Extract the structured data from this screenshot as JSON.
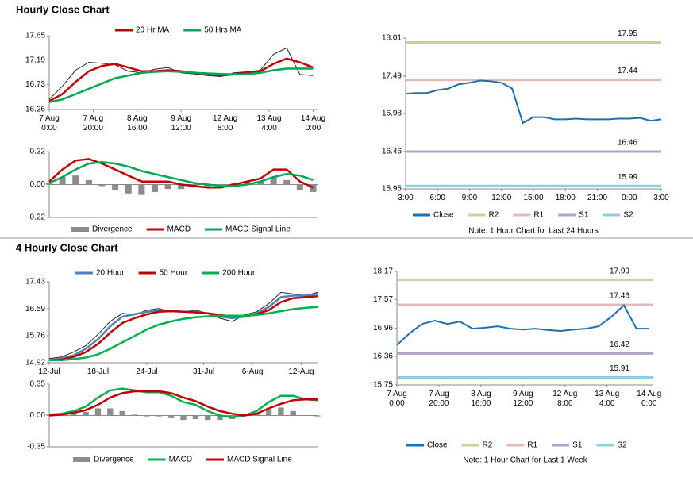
{
  "headers": [
    "Hourly Close Chart",
    "4 Hourly Close Chart"
  ],
  "chart_data": [
    {
      "type": "line",
      "xlim": [
        0,
        122
      ],
      "ylim": [
        16.26,
        17.65
      ],
      "yticks": [
        16.26,
        16.73,
        17.19,
        17.65
      ],
      "legend": "top",
      "xticks": [
        {
          "value": 0,
          "label": "7 Aug\n0:00"
        },
        {
          "value": 20,
          "label": "7 Aug\n20:00"
        },
        {
          "value": 40,
          "label": "8 Aug\n16:00"
        },
        {
          "value": 60,
          "label": "9 Aug\n12:00"
        },
        {
          "value": 80,
          "label": "12 Aug\n8:00"
        },
        {
          "value": 100,
          "label": "13 Aug\n4:00"
        },
        {
          "value": 120,
          "label": "14 Aug\n0:00"
        }
      ],
      "x": [
        0,
        6,
        12,
        18,
        24,
        30,
        36,
        42,
        48,
        54,
        60,
        66,
        72,
        78,
        84,
        90,
        96,
        102,
        108,
        114,
        120
      ],
      "series": [
        {
          "color": "#222222",
          "values": [
            16.45,
            16.7,
            17.0,
            17.15,
            17.13,
            17.1,
            16.98,
            16.95,
            17.02,
            17.05,
            16.95,
            16.93,
            16.9,
            16.88,
            16.95,
            16.97,
            17.0,
            17.3,
            17.42,
            16.92,
            16.9
          ]
        },
        {
          "name": "20 Hr MA",
          "color": "#c00000",
          "values": [
            16.42,
            16.55,
            16.78,
            16.98,
            17.08,
            17.12,
            17.05,
            16.98,
            16.98,
            17.0,
            16.98,
            16.95,
            16.93,
            16.9,
            16.92,
            16.95,
            16.98,
            17.12,
            17.22,
            17.15,
            17.05
          ]
        },
        {
          "name": "50 Hrs MA",
          "color": "#00a651",
          "values": [
            16.4,
            16.45,
            16.55,
            16.65,
            16.75,
            16.85,
            16.9,
            16.95,
            16.97,
            16.98,
            16.97,
            16.95,
            16.94,
            16.93,
            16.92,
            16.93,
            16.95,
            17.0,
            17.03,
            17.03,
            17.03
          ]
        }
      ]
    },
    {
      "type": "macd",
      "xlim": [
        0,
        122
      ],
      "ylim": [
        -0.22,
        0.22
      ],
      "yticks": [
        -0.22,
        {
          "value": 0,
          "label": "0.00"
        },
        0.22
      ],
      "legend": "bottom",
      "x": [
        0,
        6,
        12,
        18,
        24,
        30,
        36,
        42,
        48,
        54,
        60,
        66,
        72,
        78,
        84,
        90,
        96,
        102,
        108,
        114,
        120
      ],
      "series": [
        {
          "name": "Divergence",
          "kind": "bar",
          "color": "#8c8c8c",
          "values": [
            0.01,
            0.05,
            0.06,
            0.03,
            -0.01,
            -0.04,
            -0.06,
            -0.07,
            -0.05,
            -0.03,
            -0.03,
            -0.02,
            -0.02,
            -0.01,
            0.01,
            0.02,
            0.02,
            0.05,
            0.03,
            -0.04,
            -0.05
          ]
        },
        {
          "name": "MACD",
          "color": "#c00000",
          "values": [
            0.02,
            0.1,
            0.16,
            0.17,
            0.14,
            0.1,
            0.06,
            0.02,
            0.02,
            0.02,
            0.0,
            -0.01,
            -0.02,
            -0.02,
            0.0,
            0.02,
            0.04,
            0.1,
            0.1,
            0.02,
            -0.02
          ]
        },
        {
          "name": "MACD Signal Line",
          "color": "#00a651",
          "values": [
            0.01,
            0.05,
            0.1,
            0.14,
            0.15,
            0.14,
            0.12,
            0.09,
            0.07,
            0.05,
            0.03,
            0.01,
            0.0,
            -0.01,
            -0.01,
            0.0,
            0.02,
            0.05,
            0.07,
            0.06,
            0.03
          ]
        }
      ]
    },
    {
      "type": "pivot",
      "xlim": [
        0,
        24
      ],
      "ylim": [
        15.95,
        18.01
      ],
      "yticks": [
        15.95,
        16.46,
        16.98,
        17.49,
        18.01
      ],
      "legend": "bottom",
      "xticks": [
        {
          "value": 0,
          "label": "3:00"
        },
        {
          "value": 3,
          "label": "6:00"
        },
        {
          "value": 6,
          "label": "9:00"
        },
        {
          "value": 9,
          "label": "12:00"
        },
        {
          "value": 12,
          "label": "15:00"
        },
        {
          "value": 15,
          "label": "18:00"
        },
        {
          "value": 18,
          "label": "21:00"
        },
        {
          "value": 21,
          "label": "0:00"
        },
        {
          "value": 24,
          "label": "3:00"
        }
      ],
      "x": [
        0,
        1,
        2,
        3,
        4,
        5,
        6,
        7,
        8,
        9,
        10,
        11,
        12,
        13,
        14,
        15,
        16,
        17,
        18,
        19,
        20,
        21,
        22,
        23,
        24
      ],
      "series": [
        {
          "name": "Close",
          "color": "#1f6fad",
          "values": [
            17.25,
            17.26,
            17.26,
            17.3,
            17.32,
            17.38,
            17.4,
            17.43,
            17.42,
            17.4,
            17.32,
            16.85,
            16.93,
            16.93,
            16.9,
            16.9,
            16.91,
            16.9,
            16.9,
            16.9,
            16.91,
            16.91,
            16.92,
            16.88,
            16.9
          ]
        }
      ],
      "levels": [
        {
          "name": "R2",
          "color": "#c3d69b",
          "value": 17.95
        },
        {
          "name": "R1",
          "color": "#e6b9b8",
          "value": 17.44
        },
        {
          "name": "S1",
          "color": "#b3a2c7",
          "value": 16.46
        },
        {
          "name": "S2",
          "color": "#93cddd",
          "value": 15.99
        }
      ],
      "note": "Note: 1 Hour Chart for Last 24 Hours"
    },
    {
      "type": "line",
      "xlim": [
        0,
        33
      ],
      "ylim": [
        14.92,
        17.43
      ],
      "yticks": [
        14.92,
        15.76,
        16.59,
        17.43
      ],
      "legend": "top",
      "xticks": [
        {
          "value": 0,
          "label": "12-Jul"
        },
        {
          "value": 6,
          "label": "18-Jul"
        },
        {
          "value": 12,
          "label": "24-Jul"
        },
        {
          "value": 19,
          "label": "31-Jul"
        },
        {
          "value": 25,
          "label": "6-Aug"
        },
        {
          "value": 31,
          "label": "12-Aug"
        }
      ],
      "x": [
        0,
        1.5,
        3,
        4.5,
        6,
        7.5,
        9,
        10.5,
        12,
        13.5,
        15,
        16.5,
        18,
        19.5,
        21,
        22.5,
        24,
        25.5,
        27,
        28.5,
        30,
        31.5,
        33
      ],
      "series": [
        {
          "color": "#222222",
          "values": [
            15.05,
            15.1,
            15.25,
            15.45,
            15.8,
            16.2,
            16.45,
            16.4,
            16.55,
            16.6,
            16.5,
            16.5,
            16.55,
            16.45,
            16.3,
            16.2,
            16.4,
            16.5,
            16.75,
            17.1,
            17.05,
            17.0,
            17.1
          ]
        },
        {
          "name": "20 Hour",
          "color": "#4f81bd",
          "values": [
            15.0,
            15.05,
            15.15,
            15.35,
            15.65,
            16.05,
            16.35,
            16.42,
            16.5,
            16.55,
            16.52,
            16.5,
            16.5,
            16.45,
            16.35,
            16.3,
            16.35,
            16.45,
            16.65,
            16.95,
            17.0,
            17.0,
            17.05
          ]
        },
        {
          "name": "50 Hour",
          "color": "#c00000",
          "values": [
            15.0,
            15.02,
            15.1,
            15.25,
            15.5,
            15.85,
            16.15,
            16.3,
            16.42,
            16.5,
            16.52,
            16.5,
            16.48,
            16.45,
            16.4,
            16.35,
            16.35,
            16.42,
            16.55,
            16.8,
            16.92,
            16.95,
            16.98
          ]
        },
        {
          "name": "200 Hour",
          "color": "#00b050",
          "values": [
            15.0,
            15.0,
            15.03,
            15.08,
            15.18,
            15.35,
            15.55,
            15.75,
            15.95,
            16.1,
            16.2,
            16.28,
            16.33,
            16.36,
            16.38,
            16.38,
            16.38,
            16.4,
            16.45,
            16.52,
            16.58,
            16.62,
            16.65
          ]
        }
      ]
    },
    {
      "type": "macd",
      "xlim": [
        0,
        33
      ],
      "ylim": [
        -0.35,
        0.35
      ],
      "yticks": [
        -0.35,
        {
          "value": 0,
          "label": "0.00"
        },
        0.35
      ],
      "legend": "bottom",
      "x": [
        0,
        1.5,
        3,
        4.5,
        6,
        7.5,
        9,
        10.5,
        12,
        13.5,
        15,
        16.5,
        18,
        19.5,
        21,
        22.5,
        24,
        25.5,
        27,
        28.5,
        30,
        31.5,
        33
      ],
      "series": [
        {
          "name": "Divergence",
          "kind": "bar",
          "color": "#8c8c8c",
          "values": [
            0.01,
            0.01,
            0.02,
            0.04,
            0.08,
            0.08,
            0.05,
            0.01,
            -0.01,
            -0.01,
            -0.03,
            -0.05,
            -0.04,
            -0.05,
            -0.05,
            -0.04,
            0.0,
            0.03,
            0.07,
            0.09,
            0.05,
            0.0,
            -0.01
          ]
        },
        {
          "name": "MACD",
          "color": "#00b050",
          "values": [
            0.01,
            0.02,
            0.05,
            0.1,
            0.2,
            0.28,
            0.3,
            0.28,
            0.26,
            0.26,
            0.22,
            0.15,
            0.12,
            0.05,
            0.0,
            -0.02,
            0.0,
            0.05,
            0.15,
            0.22,
            0.22,
            0.18,
            0.17
          ]
        },
        {
          "name": "MACD Signal Line",
          "color": "#c00000",
          "values": [
            0.0,
            0.01,
            0.03,
            0.06,
            0.12,
            0.2,
            0.25,
            0.27,
            0.27,
            0.27,
            0.25,
            0.2,
            0.16,
            0.1,
            0.05,
            0.02,
            0.0,
            0.02,
            0.08,
            0.13,
            0.17,
            0.18,
            0.18
          ]
        }
      ]
    },
    {
      "type": "pivot",
      "xlim": [
        0,
        122
      ],
      "ylim": [
        15.75,
        18.17
      ],
      "yticks": [
        15.75,
        16.36,
        16.96,
        17.57,
        18.17
      ],
      "legend": "bottom",
      "xticks": [
        {
          "value": 0,
          "label": "7 Aug\n0:00"
        },
        {
          "value": 20,
          "label": "7 Aug\n20:00"
        },
        {
          "value": 40,
          "label": "8 Aug\n16:00"
        },
        {
          "value": 60,
          "label": "9 Aug\n12:00"
        },
        {
          "value": 80,
          "label": "12 Aug\n8:00"
        },
        {
          "value": 100,
          "label": "13 Aug\n4:00"
        },
        {
          "value": 120,
          "label": "14 Aug\n0:00"
        }
      ],
      "x": [
        0,
        6,
        12,
        18,
        24,
        30,
        36,
        42,
        48,
        54,
        60,
        66,
        72,
        78,
        84,
        90,
        96,
        102,
        108,
        114,
        120
      ],
      "series": [
        {
          "name": "Close",
          "color": "#1f6fad",
          "values": [
            16.6,
            16.85,
            17.05,
            17.12,
            17.05,
            17.1,
            16.95,
            16.97,
            17.0,
            16.95,
            16.93,
            16.95,
            16.92,
            16.9,
            16.93,
            16.95,
            17.0,
            17.2,
            17.45,
            16.95,
            16.95
          ]
        }
      ],
      "levels": [
        {
          "name": "R2",
          "color": "#c3d69b",
          "value": 17.99
        },
        {
          "name": "R1",
          "color": "#e6b9b8",
          "value": 17.46
        },
        {
          "name": "S1",
          "color": "#b3a2c7",
          "value": 16.42
        },
        {
          "name": "S2",
          "color": "#93cddd",
          "value": 15.91
        }
      ],
      "note": "Note: 1 Hour Chart for Last 1 Week"
    }
  ]
}
